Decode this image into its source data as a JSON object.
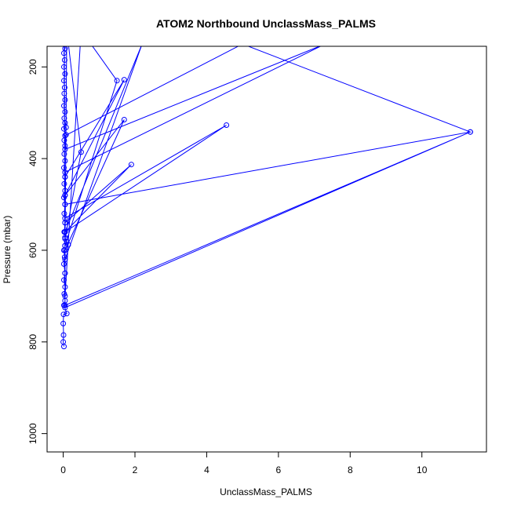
{
  "chart_data": {
    "type": "line",
    "title": "ATOM2 Northbound UnclassMass_PALMS",
    "xlabel": "UnclassMass_PALMS",
    "ylabel": "Pressure (mbar)",
    "xlim": [
      -0.45,
      11.8
    ],
    "ylim": [
      1040,
      155
    ],
    "y_reversed": true,
    "grid": false,
    "x_ticks": [
      0,
      2,
      4,
      6,
      8,
      10
    ],
    "y_ticks": [
      200,
      400,
      600,
      800,
      1000
    ],
    "series": [
      {
        "color": "#0000ff",
        "marker": "open-circle",
        "points": [
          [
            0.02,
            810
          ],
          [
            0.0,
            800
          ],
          [
            0.01,
            785
          ],
          [
            0.0,
            760
          ],
          [
            0.01,
            740
          ],
          [
            0.1,
            738
          ],
          [
            0.02,
            720
          ],
          [
            0.05,
            710
          ],
          [
            0.03,
            695
          ],
          [
            0.05,
            680
          ],
          [
            0.02,
            665
          ],
          [
            0.05,
            650
          ],
          [
            0.02,
            630
          ],
          [
            0.04,
            615
          ],
          [
            0.02,
            600
          ],
          [
            0.14,
            588
          ],
          [
            0.1,
            582
          ],
          [
            0.05,
            572
          ],
          [
            0.03,
            560
          ],
          [
            0.05,
            540
          ],
          [
            0.03,
            520
          ],
          [
            0.05,
            500
          ],
          [
            0.02,
            485
          ],
          [
            0.05,
            470
          ],
          [
            0.03,
            455
          ],
          [
            0.05,
            440
          ],
          [
            0.02,
            420
          ],
          [
            0.05,
            405
          ],
          [
            0.03,
            390
          ],
          [
            0.05,
            372
          ],
          [
            0.03,
            360
          ],
          [
            0.08,
            348
          ],
          [
            0.02,
            335
          ],
          [
            0.08,
            332
          ],
          [
            0.05,
            322
          ],
          [
            0.03,
            312
          ],
          [
            0.05,
            298
          ],
          [
            0.02,
            285
          ],
          [
            0.05,
            272
          ],
          [
            0.03,
            258
          ],
          [
            0.04,
            245
          ],
          [
            0.02,
            230
          ],
          [
            0.05,
            215
          ],
          [
            0.02,
            200
          ],
          [
            0.04,
            185
          ],
          [
            0.02,
            170
          ],
          [
            0.1,
            140
          ],
          [
            0.05,
            160
          ],
          [
            0.03,
            120
          ],
          [
            0.05,
            725
          ],
          [
            11.35,
            342
          ],
          [
            0.05,
            720
          ],
          [
            0.05,
            650
          ],
          [
            0.05,
            560
          ],
          [
            1.9,
            413
          ],
          [
            0.05,
            540
          ],
          [
            0.05,
            480
          ],
          [
            1.7,
            315
          ],
          [
            0.05,
            600
          ],
          [
            0.05,
            575
          ],
          [
            0.5,
            386
          ],
          [
            0.1,
            120
          ],
          [
            0.05,
            590
          ],
          [
            0.05,
            560
          ],
          [
            4.55,
            327
          ],
          [
            0.05,
            530
          ],
          [
            0.05,
            480
          ],
          [
            1.7,
            228
          ],
          [
            0.05,
            440
          ],
          [
            0.05,
            590
          ],
          [
            1.5,
            230
          ],
          [
            0.5,
            120
          ],
          [
            0.05,
            700
          ],
          [
            0.05,
            620
          ],
          [
            2.2,
            150
          ],
          [
            0.05,
            560
          ],
          [
            0.05,
            430
          ],
          [
            7.3,
            150
          ],
          [
            0.05,
            380
          ],
          [
            0.05,
            350
          ],
          [
            5.0,
            150
          ],
          [
            11.35,
            342
          ],
          [
            0.05,
            500
          ]
        ]
      }
    ]
  }
}
